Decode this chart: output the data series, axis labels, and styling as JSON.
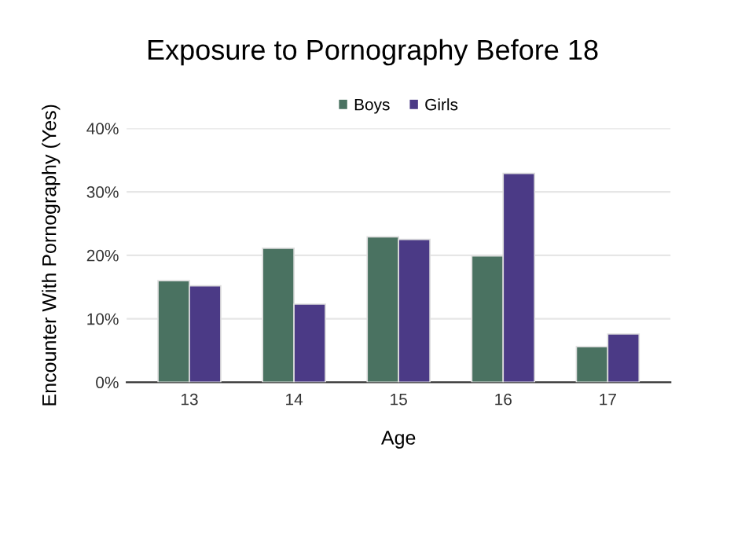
{
  "chart_data": {
    "type": "bar",
    "title": "Exposure to Pornography Before 18",
    "xlabel": "Age",
    "ylabel": "Encounter With Pornography (Yes)",
    "categories": [
      "13",
      "14",
      "15",
      "16",
      "17"
    ],
    "series": [
      {
        "name": "Boys",
        "color": "#4a7261",
        "values": [
          16.0,
          21.1,
          22.9,
          19.9,
          5.6
        ]
      },
      {
        "name": "Girls",
        "color": "#4b3a86",
        "values": [
          15.2,
          12.3,
          22.5,
          32.9,
          7.6
        ]
      }
    ],
    "ylim": [
      0,
      40
    ],
    "yticks": [
      {
        "value": 0,
        "label": "0%"
      },
      {
        "value": 10,
        "label": "10%"
      },
      {
        "value": 20,
        "label": "20%"
      },
      {
        "value": 30,
        "label": "30%"
      },
      {
        "value": 40,
        "label": "40%"
      }
    ],
    "grid": "y",
    "legend": "top"
  }
}
